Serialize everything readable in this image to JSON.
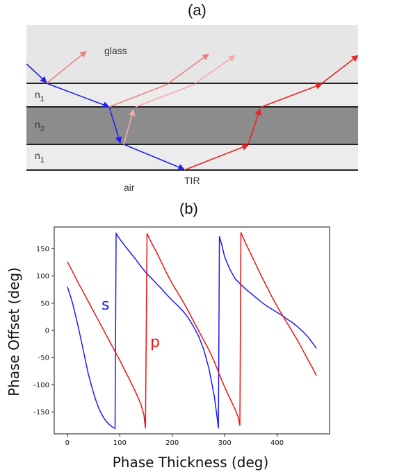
{
  "panel_a": {
    "label": "(a)",
    "glass_label": "glass",
    "n1_top_label": "n",
    "n1_top_sub": "1",
    "n2_label": "n",
    "n2_sub": "2",
    "n1_bottom_label": "n",
    "n1_bottom_sub": "1",
    "air_label": "air",
    "tir_label": "TIR",
    "colors": {
      "glass": "#e6e6e6",
      "n1": "#ececec",
      "n2": "#8c8c8c",
      "incident_ray": "#2222ee",
      "reflected_ray": "#ee2222"
    }
  },
  "panel_b": {
    "label": "(b)"
  },
  "chart_data": {
    "type": "line",
    "xlabel": "Phase Thickness (deg)",
    "ylabel": "Phase Offset (deg)",
    "xlim": [
      -25,
      500
    ],
    "ylim": [
      -190,
      190
    ],
    "xticks": [
      0,
      100,
      200,
      300,
      400
    ],
    "yticks": [
      150,
      100,
      50,
      0,
      -50,
      -100,
      -150
    ],
    "grid": false,
    "series": [
      {
        "name": "s",
        "color": "#1a1aff",
        "points": [
          [
            0,
            80
          ],
          [
            5,
            66
          ],
          [
            10,
            50
          ],
          [
            15,
            30
          ],
          [
            20,
            10
          ],
          [
            25,
            -12
          ],
          [
            30,
            -35
          ],
          [
            35,
            -58
          ],
          [
            40,
            -80
          ],
          [
            45,
            -98
          ],
          [
            50,
            -115
          ],
          [
            55,
            -130
          ],
          [
            60,
            -143
          ],
          [
            65,
            -153
          ],
          [
            70,
            -162
          ],
          [
            75,
            -168
          ],
          [
            80,
            -173
          ],
          [
            85,
            -177
          ],
          [
            91,
            -180
          ],
          [
            93,
            178
          ],
          [
            100,
            168
          ],
          [
            110,
            155
          ],
          [
            120,
            143
          ],
          [
            130,
            131
          ],
          [
            140,
            118
          ],
          [
            150,
            106
          ],
          [
            160,
            96
          ],
          [
            170,
            86
          ],
          [
            180,
            76
          ],
          [
            190,
            65
          ],
          [
            200,
            55
          ],
          [
            210,
            46
          ],
          [
            220,
            36
          ],
          [
            230,
            24
          ],
          [
            240,
            8
          ],
          [
            250,
            -10
          ],
          [
            260,
            -35
          ],
          [
            270,
            -70
          ],
          [
            280,
            -120
          ],
          [
            285,
            -155
          ],
          [
            288,
            -180
          ],
          [
            290,
            173
          ],
          [
            295,
            155
          ],
          [
            300,
            135
          ],
          [
            310,
            112
          ],
          [
            320,
            95
          ],
          [
            330,
            85
          ],
          [
            340,
            76
          ],
          [
            350,
            68
          ],
          [
            360,
            60
          ],
          [
            370,
            52
          ],
          [
            380,
            45
          ],
          [
            390,
            39
          ],
          [
            400,
            33
          ],
          [
            410,
            27
          ],
          [
            420,
            20
          ],
          [
            430,
            14
          ],
          [
            440,
            6
          ],
          [
            450,
            -3
          ],
          [
            460,
            -13
          ],
          [
            468,
            -24
          ],
          [
            475,
            -33
          ]
        ]
      },
      {
        "name": "p",
        "color": "#ee1111",
        "points": [
          [
            0,
            126
          ],
          [
            10,
            108
          ],
          [
            20,
            89
          ],
          [
            30,
            71
          ],
          [
            40,
            53
          ],
          [
            50,
            35
          ],
          [
            60,
            17
          ],
          [
            70,
            -1
          ],
          [
            80,
            -19
          ],
          [
            90,
            -37
          ],
          [
            100,
            -55
          ],
          [
            110,
            -74
          ],
          [
            120,
            -93
          ],
          [
            130,
            -113
          ],
          [
            140,
            -135
          ],
          [
            146,
            -155
          ],
          [
            149,
            -180
          ],
          [
            152,
            178
          ],
          [
            160,
            162
          ],
          [
            170,
            144
          ],
          [
            180,
            124
          ],
          [
            190,
            104
          ],
          [
            200,
            86
          ],
          [
            210,
            70
          ],
          [
            220,
            54
          ],
          [
            230,
            37
          ],
          [
            240,
            18
          ],
          [
            250,
            0
          ],
          [
            260,
            -18
          ],
          [
            270,
            -36
          ],
          [
            280,
            -57
          ],
          [
            290,
            -81
          ],
          [
            300,
            -104
          ],
          [
            310,
            -125
          ],
          [
            320,
            -145
          ],
          [
            326,
            -160
          ],
          [
            329,
            -175
          ],
          [
            331,
            180
          ],
          [
            340,
            160
          ],
          [
            350,
            140
          ],
          [
            360,
            120
          ],
          [
            370,
            100
          ],
          [
            380,
            81
          ],
          [
            390,
            62
          ],
          [
            400,
            44
          ],
          [
            410,
            28
          ],
          [
            420,
            12
          ],
          [
            430,
            -4
          ],
          [
            440,
            -20
          ],
          [
            450,
            -38
          ],
          [
            460,
            -56
          ],
          [
            468,
            -70
          ],
          [
            475,
            -83
          ]
        ]
      }
    ]
  }
}
